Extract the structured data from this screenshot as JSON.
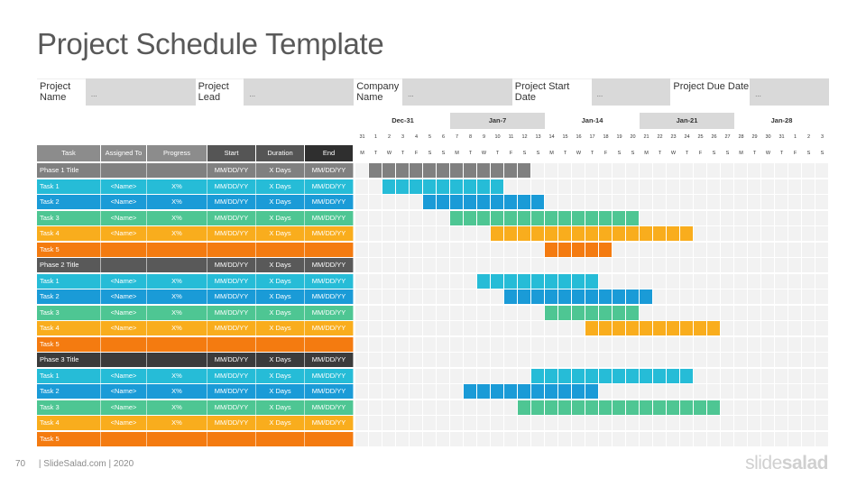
{
  "title": "Project Schedule Template",
  "info": [
    {
      "label": "Project Name",
      "value": "..."
    },
    {
      "label": "Project Lead",
      "value": "..."
    },
    {
      "label": "Company Name",
      "value": "..."
    },
    {
      "label": "Project Start Date",
      "value": "..."
    },
    {
      "label": "Project Due Date",
      "value": "..."
    }
  ],
  "columns": [
    "Task",
    "Assigned To",
    "Progress",
    "Start",
    "Duration",
    "End"
  ],
  "weeks": [
    "Dec-31",
    "Jan-7",
    "Jan-14",
    "Jan-21",
    "Jan-28"
  ],
  "day_numbers": [
    "31",
    "1",
    "2",
    "3",
    "4",
    "5",
    "6",
    "7",
    "8",
    "9",
    "10",
    "11",
    "12",
    "13",
    "14",
    "15",
    "16",
    "17",
    "18",
    "19",
    "20",
    "21",
    "22",
    "23",
    "24",
    "25",
    "26",
    "27",
    "28",
    "29",
    "30",
    "31",
    "1",
    "2",
    "3"
  ],
  "day_letters": [
    "M",
    "T",
    "W",
    "T",
    "F",
    "S",
    "S",
    "M",
    "T",
    "W",
    "T",
    "F",
    "S",
    "S",
    "M",
    "T",
    "W",
    "T",
    "F",
    "S",
    "S",
    "M",
    "T",
    "W",
    "T",
    "F",
    "S",
    "S",
    "M",
    "T",
    "W",
    "T",
    "F",
    "S",
    "S"
  ],
  "colors": {
    "phase1": "#808080",
    "phase2": "#595959",
    "phase3": "#3b3b3b",
    "task1": "#26bcd7",
    "task2": "#1a9bd7",
    "task3": "#4ec693",
    "task4": "#f9ad1d",
    "task5": "#f47b10",
    "header": "#7f7f7f"
  },
  "rows": [
    {
      "type": "phase1",
      "cells": [
        "Phase 1 Title",
        "",
        "",
        "MM/DD/YY",
        "X Days",
        "MM/DD/YY"
      ],
      "bar": [
        1,
        13
      ]
    },
    {
      "type": "task1",
      "cells": [
        "Task 1",
        "<Name>",
        "X%",
        "MM/DD/YY",
        "X Days",
        "MM/DD/YY"
      ],
      "bar": [
        2,
        11
      ]
    },
    {
      "type": "task2",
      "cells": [
        "Task 2",
        "<Name>",
        "X%",
        "MM/DD/YY",
        "X Days",
        "MM/DD/YY"
      ],
      "bar": [
        5,
        14
      ]
    },
    {
      "type": "task3",
      "cells": [
        "Task 3",
        "<Name>",
        "X%",
        "MM/DD/YY",
        "X Days",
        "MM/DD/YY"
      ],
      "bar": [
        7,
        21
      ]
    },
    {
      "type": "task4",
      "cells": [
        "Task 4",
        "<Name>",
        "X%",
        "MM/DD/YY",
        "X Days",
        "MM/DD/YY"
      ],
      "bar": [
        10,
        25
      ]
    },
    {
      "type": "task5",
      "cells": [
        "Task 5",
        "",
        "",
        "",
        "",
        ""
      ],
      "bar": [
        14,
        19
      ]
    },
    {
      "type": "phase2",
      "cells": [
        "Phase 2 Title",
        "",
        "",
        "MM/DD/YY",
        "X Days",
        "MM/DD/YY"
      ],
      "bar": null
    },
    {
      "type": "task1",
      "cells": [
        "Task 1",
        "<Name>",
        "X%",
        "MM/DD/YY",
        "X Days",
        "MM/DD/YY"
      ],
      "bar": [
        9,
        18
      ]
    },
    {
      "type": "task2",
      "cells": [
        "Task 2",
        "<Name>",
        "X%",
        "MM/DD/YY",
        "X Days",
        "MM/DD/YY"
      ],
      "bar": [
        11,
        22
      ]
    },
    {
      "type": "task3",
      "cells": [
        "Task 3",
        "<Name>",
        "X%",
        "MM/DD/YY",
        "X Days",
        "MM/DD/YY"
      ],
      "bar": [
        14,
        21
      ]
    },
    {
      "type": "task4",
      "cells": [
        "Task 4",
        "<Name>",
        "X%",
        "MM/DD/YY",
        "X Days",
        "MM/DD/YY"
      ],
      "bar": [
        17,
        27
      ]
    },
    {
      "type": "task5",
      "cells": [
        "Task 5",
        "",
        "",
        "",
        "",
        ""
      ],
      "bar": null
    },
    {
      "type": "phase3",
      "cells": [
        "Phase 3 Title",
        "",
        "",
        "MM/DD/YY",
        "X Days",
        "MM/DD/YY"
      ],
      "bar": null
    },
    {
      "type": "task1",
      "cells": [
        "Task 1",
        "<Name>",
        "X%",
        "MM/DD/YY",
        "X Days",
        "MM/DD/YY"
      ],
      "bar": [
        13,
        25
      ]
    },
    {
      "type": "task2",
      "cells": [
        "Task 2",
        "<Name>",
        "X%",
        "MM/DD/YY",
        "X Days",
        "MM/DD/YY"
      ],
      "bar": [
        8,
        18
      ]
    },
    {
      "type": "task3",
      "cells": [
        "Task 3",
        "<Name>",
        "X%",
        "MM/DD/YY",
        "X Days",
        "MM/DD/YY"
      ],
      "bar": [
        12,
        27
      ]
    },
    {
      "type": "task4",
      "cells": [
        "Task 4",
        "<Name>",
        "X%",
        "MM/DD/YY",
        "X Days",
        "MM/DD/YY"
      ],
      "bar": null
    },
    {
      "type": "task5",
      "cells": [
        "Task 5",
        "",
        "",
        "",
        "",
        ""
      ],
      "bar": null
    }
  ],
  "footer": {
    "page": "70",
    "text": "| SlideSalad.com | 2020"
  },
  "logo": {
    "part1": "slide",
    "part2": "salad"
  }
}
